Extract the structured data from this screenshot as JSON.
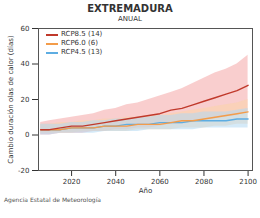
{
  "chart_data": {
    "type": "line",
    "title": "EXTREMADURA",
    "subtitle": "ANUAL",
    "x_label": "Año",
    "y_label": "Cambio duración olas de calor (días)",
    "caption": "Agencia Estatal de Meteorología",
    "x": [
      2006,
      2010,
      2015,
      2020,
      2025,
      2030,
      2035,
      2040,
      2045,
      2050,
      2055,
      2060,
      2065,
      2070,
      2075,
      2080,
      2085,
      2090,
      2095,
      2100
    ],
    "series": [
      {
        "name": "RCP8.5 (14)",
        "color": "#c0392b",
        "band_color": "#f4a6a6",
        "values": [
          3,
          3,
          4,
          5,
          5,
          6,
          7,
          8,
          9,
          10,
          11,
          12,
          14,
          15,
          17,
          19,
          21,
          23,
          25,
          28
        ],
        "lower": [
          0,
          0,
          1,
          1,
          1,
          2,
          2,
          3,
          3,
          4,
          4,
          5,
          6,
          6,
          7,
          8,
          9,
          10,
          11,
          13
        ],
        "upper": [
          7,
          8,
          9,
          10,
          11,
          12,
          14,
          15,
          17,
          18,
          20,
          22,
          24,
          26,
          29,
          32,
          35,
          37,
          40,
          45
        ]
      },
      {
        "name": "RCP6.0 (6)",
        "color": "#f39c4a",
        "band_color": "#fbd3a8",
        "values": [
          3,
          3,
          3,
          4,
          4,
          4,
          5,
          5,
          5,
          6,
          6,
          6,
          7,
          8,
          8,
          9,
          10,
          11,
          12,
          13
        ],
        "lower": [
          1,
          1,
          1,
          1,
          2,
          2,
          2,
          2,
          2,
          3,
          3,
          3,
          3,
          4,
          4,
          4,
          5,
          5,
          6,
          6
        ],
        "upper": [
          6,
          6,
          7,
          7,
          8,
          8,
          9,
          9,
          10,
          10,
          11,
          11,
          12,
          13,
          14,
          15,
          16,
          17,
          18,
          20
        ]
      },
      {
        "name": "RCP4.5 (13)",
        "color": "#5dade2",
        "band_color": "#b3d9f2",
        "values": [
          3,
          3,
          3,
          4,
          4,
          4,
          5,
          5,
          6,
          6,
          6,
          7,
          7,
          7,
          8,
          8,
          8,
          8,
          9,
          9
        ],
        "lower": [
          0,
          0,
          1,
          1,
          1,
          1,
          2,
          2,
          2,
          2,
          3,
          3,
          3,
          3,
          3,
          4,
          4,
          4,
          4,
          4
        ],
        "upper": [
          6,
          6,
          6,
          7,
          7,
          8,
          8,
          9,
          9,
          10,
          10,
          11,
          11,
          12,
          12,
          13,
          13,
          13,
          14,
          15
        ]
      }
    ],
    "xlim": [
      2005,
      2102
    ],
    "xticks": [
      2020,
      2040,
      2060,
      2080,
      2100
    ],
    "ylim": [
      -20,
      60
    ],
    "yticks": [
      -20,
      0,
      20,
      40,
      60
    ],
    "grid": false,
    "legend": "top-left"
  }
}
